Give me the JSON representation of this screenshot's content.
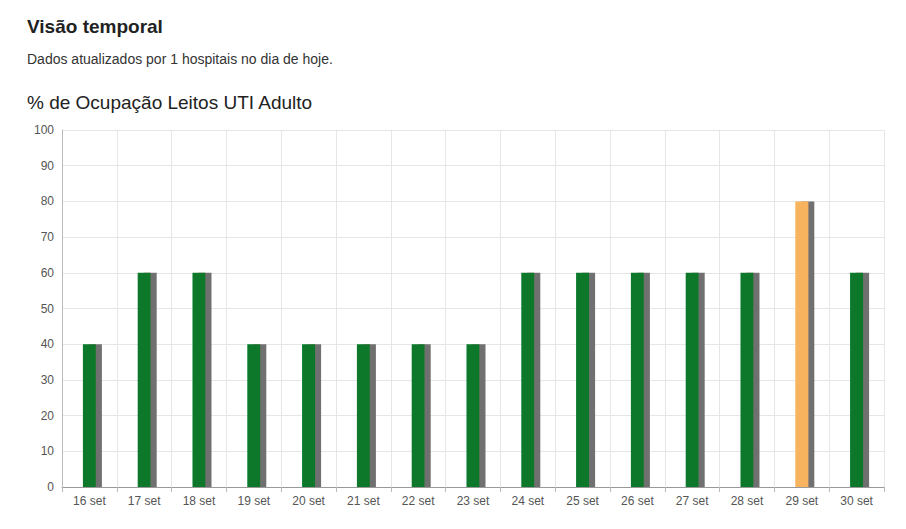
{
  "header": {
    "title": "Visão temporal",
    "text": "Dados atualizados por 1 hospitais no dia de hoje."
  },
  "chart_data": {
    "type": "bar",
    "title": "% de Ocupação Leitos UTI Adulto",
    "categories": [
      "16 set",
      "17 set",
      "18 set",
      "19 set",
      "20 set",
      "21 set",
      "22 set",
      "23 set",
      "24 set",
      "25 set",
      "26 set",
      "27 set",
      "28 set",
      "29 set",
      "30 set"
    ],
    "values": [
      40,
      60,
      60,
      40,
      40,
      40,
      40,
      40,
      60,
      60,
      60,
      60,
      60,
      80,
      60
    ],
    "colors": [
      "#07782a",
      "#07782a",
      "#07782a",
      "#07782a",
      "#07782a",
      "#07782a",
      "#07782a",
      "#07782a",
      "#07782a",
      "#07782a",
      "#07782a",
      "#07782a",
      "#07782a",
      "#f8b35e",
      "#07782a"
    ],
    "ylim": [
      0,
      100
    ],
    "yticks": [
      0,
      10,
      20,
      30,
      40,
      50,
      60,
      70,
      80,
      90,
      100
    ],
    "grid": true
  }
}
